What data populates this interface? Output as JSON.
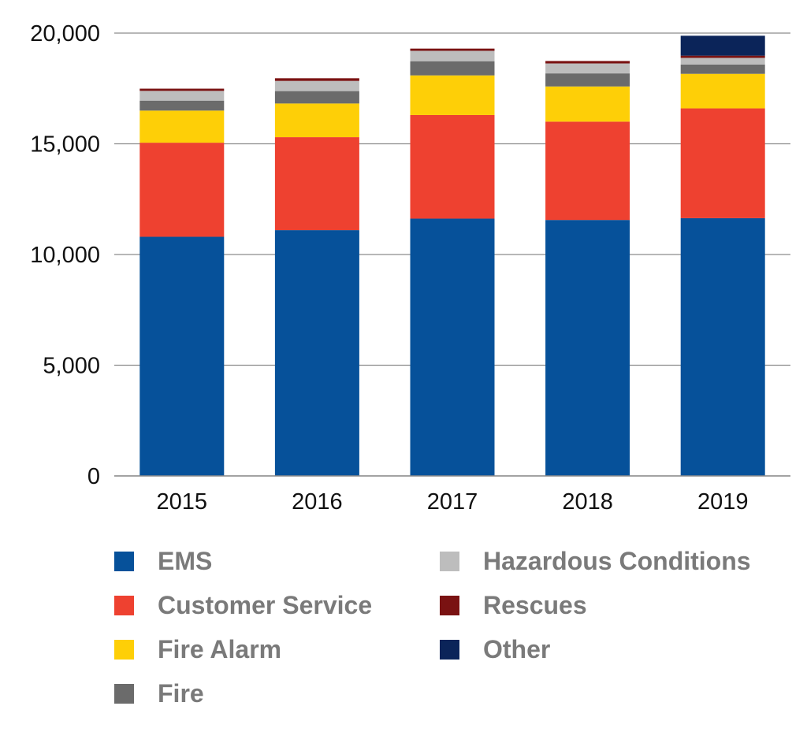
{
  "chart_data": {
    "type": "bar",
    "stacked": true,
    "categories": [
      "2015",
      "2016",
      "2017",
      "2018",
      "2019"
    ],
    "ylim": [
      0,
      20000
    ],
    "yticks": [
      0,
      5000,
      10000,
      15000,
      20000
    ],
    "ytick_labels": [
      "0",
      "5,000",
      "10,000",
      "15,000",
      "20,000"
    ],
    "grid": true,
    "legend_position": "bottom",
    "series": [
      {
        "name": "EMS",
        "color": "#06519a",
        "values": [
          10800,
          11100,
          11620,
          11560,
          11640
        ]
      },
      {
        "name": "Customer Service",
        "color": "#ee4130",
        "values": [
          4250,
          4200,
          4680,
          4440,
          4960
        ]
      },
      {
        "name": "Fire Alarm",
        "color": "#fecf07",
        "values": [
          1450,
          1520,
          1790,
          1590,
          1560
        ]
      },
      {
        "name": "Fire",
        "color": "#6b6b6b",
        "values": [
          450,
          560,
          640,
          590,
          420
        ]
      },
      {
        "name": "Hazardous Conditions",
        "color": "#bdbdbd",
        "values": [
          440,
          460,
          470,
          450,
          300
        ]
      },
      {
        "name": "Rescues",
        "color": "#7a1212",
        "values": [
          100,
          120,
          100,
          110,
          100
        ]
      },
      {
        "name": "Other",
        "color": "#0b2459",
        "values": [
          0,
          0,
          0,
          0,
          900
        ]
      }
    ]
  },
  "legend": {
    "items": [
      {
        "label": "EMS",
        "color": "#06519a"
      },
      {
        "label": "Customer Service",
        "color": "#ee4130"
      },
      {
        "label": "Fire Alarm",
        "color": "#fecf07"
      },
      {
        "label": "Fire",
        "color": "#6b6b6b"
      },
      {
        "label": "Hazardous Conditions",
        "color": "#bdbdbd"
      },
      {
        "label": "Rescues",
        "color": "#7a1212"
      },
      {
        "label": "Other",
        "color": "#0b2459"
      }
    ]
  }
}
